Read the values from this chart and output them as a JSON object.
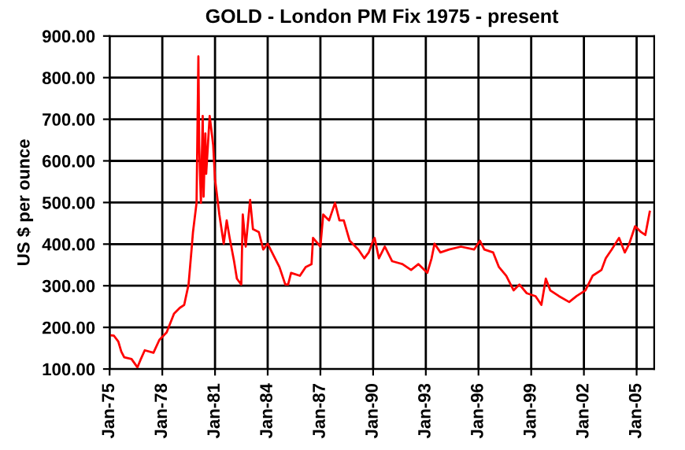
{
  "chart_data": {
    "type": "line",
    "title": "GOLD - London PM Fix 1975 - present",
    "ylabel": "US $ per ounce",
    "x": [
      "1975-01",
      "1975-04",
      "1975-07",
      "1975-09",
      "1975-11",
      "1976-04",
      "1976-08",
      "1976-10",
      "1977-01",
      "1977-07",
      "1977-11",
      "1978-04",
      "1978-09",
      "1979-01",
      "1979-04",
      "1979-07",
      "1979-09",
      "1979-10",
      "1979-12-14",
      "1980-01-21",
      "1980-02-06",
      "1980-03-14",
      "1980-04-20",
      "1980-05-08",
      "1980-06-14",
      "1980-07-01",
      "1980-09-12",
      "1980-11-24",
      "1981-01",
      "1981-02",
      "1981-04",
      "1981-07",
      "1981-09",
      "1981-11",
      "1982-02",
      "1982-04",
      "1982-07",
      "1982-08",
      "1982-10",
      "1983-01",
      "1983-03",
      "1983-07",
      "1983-10",
      "1984-01",
      "1984-05",
      "1984-09",
      "1985-01",
      "1985-03",
      "1985-05",
      "1985-11",
      "1986-03",
      "1986-07",
      "1986-08",
      "1987-01",
      "1987-03",
      "1987-07",
      "1987-11",
      "1988-02",
      "1988-05",
      "1988-09",
      "1989-03",
      "1989-07",
      "1989-10",
      "1990-01",
      "1990-02",
      "1990-05",
      "1990-09",
      "1991-02",
      "1991-09",
      "1992-03",
      "1992-08",
      "1993-02",
      "1993-05",
      "1993-07",
      "1993-11",
      "1994-05",
      "1995-01",
      "1995-10",
      "1996-02",
      "1996-05",
      "1996-11",
      "1997-03",
      "1997-08",
      "1998-01",
      "1998-05",
      "1998-10",
      "1999-04",
      "1999-08",
      "1999-11",
      "2000-02",
      "2000-08",
      "2001-03",
      "2001-08",
      "2002-02",
      "2002-07",
      "2003-01",
      "2003-04",
      "2003-08",
      "2004-01",
      "2004-05",
      "2004-08",
      "2004-12",
      "2005-04",
      "2005-07",
      "2005-10"
    ],
    "series": [
      {
        "color": "#ff0000",
        "values": [
          181,
          180,
          166,
          142,
          128,
          124,
          104,
          121,
          145,
          139,
          170,
          188,
          233,
          247,
          254,
          303,
          387,
          429,
          499,
          851,
          638,
          499,
          708,
          514,
          666,
          569,
          708,
          638,
          555,
          527,
          471,
          401,
          457,
          415,
          359,
          317,
          303,
          471,
          394,
          506,
          436,
          429,
          387,
          401,
          373,
          345,
          303,
          303,
          331,
          324,
          345,
          352,
          415,
          394,
          471,
          457,
          499,
          457,
          457,
          408,
          387,
          366,
          380,
          408,
          415,
          366,
          394,
          359,
          352,
          338,
          352,
          331,
          366,
          401,
          380,
          387,
          394,
          387,
          408,
          387,
          380,
          345,
          324,
          289,
          303,
          282,
          275,
          254,
          317,
          289,
          275,
          261,
          275,
          289,
          324,
          338,
          366,
          387,
          415,
          380,
          401,
          443,
          429,
          422,
          478
        ]
      }
    ],
    "xlim": [
      "1975-01",
      "2006-01"
    ],
    "ylim": [
      100,
      900
    ],
    "yticks": [
      {
        "value": 100,
        "label": "100.00"
      },
      {
        "value": 200,
        "label": "200.00"
      },
      {
        "value": 300,
        "label": "300.00"
      },
      {
        "value": 400,
        "label": "400.00"
      },
      {
        "value": 500,
        "label": "500.00"
      },
      {
        "value": 600,
        "label": "600.00"
      },
      {
        "value": 700,
        "label": "700.00"
      },
      {
        "value": 800,
        "label": "800.00"
      },
      {
        "value": 900,
        "label": "900.00"
      }
    ],
    "xticks": [
      {
        "value": "1975-01",
        "label": "Jan-75"
      },
      {
        "value": "1978-01",
        "label": "Jan-78"
      },
      {
        "value": "1981-01",
        "label": "Jan-81"
      },
      {
        "value": "1984-01",
        "label": "Jan-84"
      },
      {
        "value": "1987-01",
        "label": "Jan-87"
      },
      {
        "value": "1990-01",
        "label": "Jan-90"
      },
      {
        "value": "1993-01",
        "label": "Jan-93"
      },
      {
        "value": "1996-01",
        "label": "Jan-96"
      },
      {
        "value": "1999-01",
        "label": "Jan-99"
      },
      {
        "value": "2002-01",
        "label": "Jan-02"
      },
      {
        "value": "2005-01",
        "label": "Jan-05"
      }
    ],
    "grid": true,
    "legend": false,
    "marker": "none",
    "line_style": "solid"
  }
}
